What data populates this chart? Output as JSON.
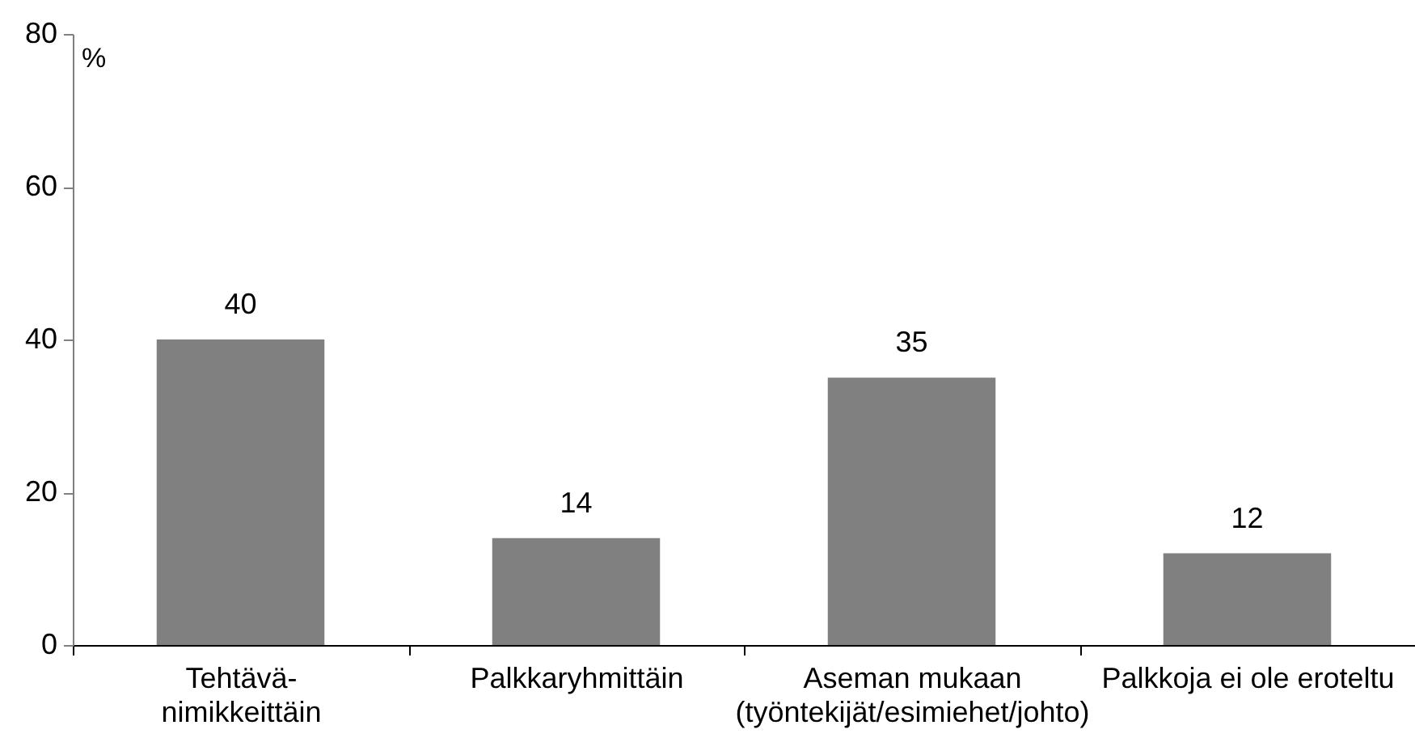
{
  "chart_data": {
    "type": "bar",
    "ylabel": "%",
    "categories": [
      "Tehtävä-\nnimikkeittäin",
      "Palkkaryhmittäin",
      "Aseman mukaan\n(työntekijät/esimiehet/johto)",
      "Palkkoja ei ole eroteltu"
    ],
    "values": [
      40,
      14,
      35,
      12
    ],
    "color": "#808080",
    "ylim": [
      0,
      80
    ],
    "yticks": [
      0,
      20,
      40,
      60,
      80
    ],
    "data_labels": true
  }
}
